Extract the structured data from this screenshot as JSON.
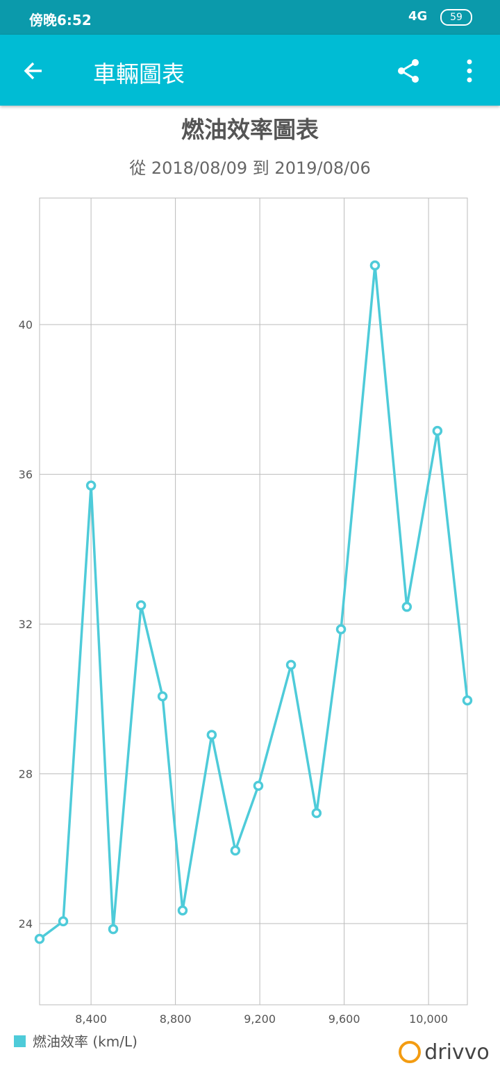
{
  "status_bar": {
    "time": "傍晚6:52",
    "network": "4G",
    "battery": "59"
  },
  "app_bar": {
    "title": "車輛圖表"
  },
  "chart_data": {
    "type": "line",
    "title": "燃油效率圖表",
    "subtitle": "從 2018/08/09 到 2019/08/06",
    "x": [
      8156,
      8268,
      8400,
      8505,
      8637,
      8739,
      8834,
      8972,
      9084,
      9193,
      9348,
      9469,
      9585,
      9746,
      9897,
      10042,
      10184
    ],
    "series": [
      {
        "name": "燃油效率 (km/L)",
        "color": "#4ecbd9",
        "values": [
          23.59,
          24.06,
          35.7,
          23.85,
          32.5,
          30.07,
          24.35,
          29.04,
          25.95,
          27.68,
          30.91,
          26.95,
          31.86,
          41.58,
          32.46,
          37.16,
          29.96
        ]
      }
    ],
    "xlim": [
      8156,
      10184
    ],
    "ylim": [
      21.83,
      43.38
    ],
    "xticks": [
      {
        "value": 8400,
        "label": "8,400"
      },
      {
        "value": 8800,
        "label": "8,800"
      },
      {
        "value": 9200,
        "label": "9,200"
      },
      {
        "value": 9600,
        "label": "9,600"
      },
      {
        "value": 10000,
        "label": "10,000"
      }
    ],
    "yticks": [
      24,
      28,
      32,
      36,
      40
    ],
    "grid": true,
    "legend": "bottom-left"
  },
  "brand": {
    "name": "drivvo"
  }
}
